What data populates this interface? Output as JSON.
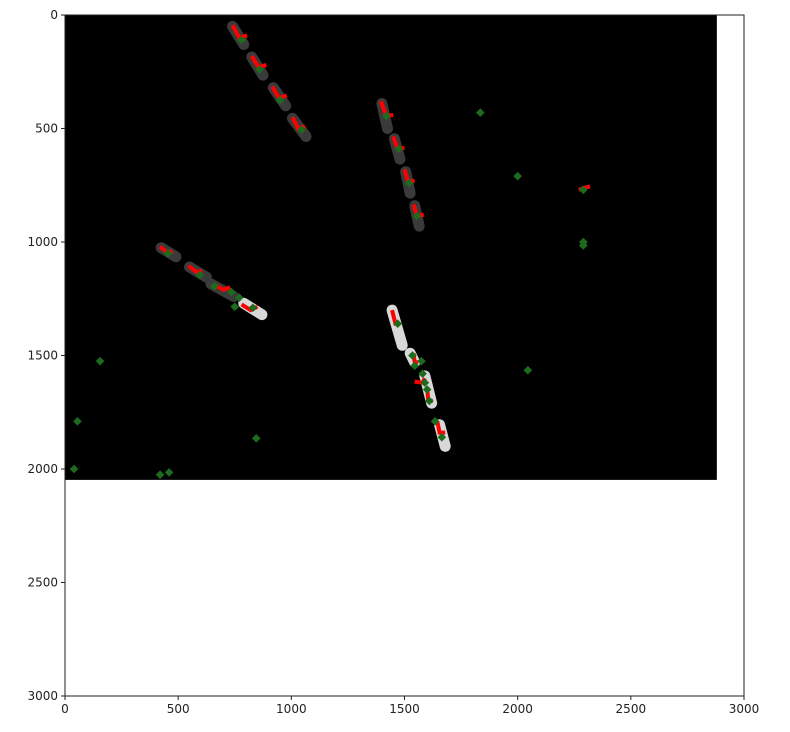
{
  "chart_data": {
    "type": "image",
    "xlim": [
      0,
      3000
    ],
    "ylim": [
      3000,
      0
    ],
    "x_ticks": [
      0,
      500,
      1000,
      1500,
      2000,
      2500,
      3000
    ],
    "y_ticks": [
      0,
      500,
      1000,
      1500,
      2000,
      2500,
      3000
    ],
    "x_tick_labels": [
      "0",
      "500",
      "1000",
      "1500",
      "2000",
      "2500",
      "3000"
    ],
    "y_tick_labels": [
      "0",
      "500",
      "1000",
      "1500",
      "2000",
      "2500",
      "3000"
    ],
    "image_extent": {
      "x": [
        0,
        2880
      ],
      "y": [
        0,
        2048
      ]
    },
    "colors": {
      "background": "#000000",
      "prediction": "#ff0000",
      "ground_truth": "#1e6b1e",
      "object_dark": "#3a3a3a",
      "object_light": "#d8d8d8"
    },
    "objects": [
      {
        "x1": 740,
        "y1": 50,
        "x2": 790,
        "y2": 130,
        "tone": "dark"
      },
      {
        "x1": 825,
        "y1": 185,
        "x2": 875,
        "y2": 265,
        "tone": "dark"
      },
      {
        "x1": 920,
        "y1": 320,
        "x2": 975,
        "y2": 400,
        "tone": "dark"
      },
      {
        "x1": 1005,
        "y1": 455,
        "x2": 1065,
        "y2": 535,
        "tone": "dark"
      },
      {
        "x1": 1400,
        "y1": 390,
        "x2": 1425,
        "y2": 500,
        "tone": "dark"
      },
      {
        "x1": 1455,
        "y1": 545,
        "x2": 1480,
        "y2": 635,
        "tone": "dark"
      },
      {
        "x1": 1505,
        "y1": 690,
        "x2": 1525,
        "y2": 785,
        "tone": "dark"
      },
      {
        "x1": 1545,
        "y1": 840,
        "x2": 1565,
        "y2": 930,
        "tone": "dark"
      },
      {
        "x1": 425,
        "y1": 1025,
        "x2": 490,
        "y2": 1065,
        "tone": "dark"
      },
      {
        "x1": 550,
        "y1": 1110,
        "x2": 625,
        "y2": 1155,
        "tone": "dark"
      },
      {
        "x1": 645,
        "y1": 1185,
        "x2": 745,
        "y2": 1240,
        "tone": "dark"
      },
      {
        "x1": 790,
        "y1": 1270,
        "x2": 870,
        "y2": 1320,
        "tone": "light"
      },
      {
        "x1": 1445,
        "y1": 1300,
        "x2": 1490,
        "y2": 1455,
        "tone": "light"
      },
      {
        "x1": 1590,
        "y1": 1590,
        "x2": 1620,
        "y2": 1710,
        "tone": "light"
      },
      {
        "x1": 1655,
        "y1": 1805,
        "x2": 1680,
        "y2": 1900,
        "tone": "light"
      },
      {
        "x1": 1525,
        "y1": 1490,
        "x2": 1545,
        "y2": 1530,
        "tone": "light"
      }
    ],
    "predictions": [
      {
        "x1": 740,
        "y1": 45,
        "x2": 770,
        "y2": 100,
        "x3": 805,
        "y3": 90
      },
      {
        "x1": 825,
        "y1": 180,
        "x2": 855,
        "y2": 230,
        "x3": 890,
        "y3": 220
      },
      {
        "x1": 915,
        "y1": 315,
        "x2": 945,
        "y2": 365,
        "x3": 980,
        "y3": 355
      },
      {
        "x1": 1005,
        "y1": 450,
        "x2": 1030,
        "y2": 500,
        "x3": 1060,
        "y3": 490
      },
      {
        "x1": 1395,
        "y1": 380,
        "x2": 1420,
        "y2": 445,
        "x3": 1450,
        "y3": 440
      },
      {
        "x1": 1450,
        "y1": 535,
        "x2": 1470,
        "y2": 590,
        "x3": 1500,
        "y3": 585
      },
      {
        "x1": 1500,
        "y1": 680,
        "x2": 1515,
        "y2": 735,
        "x3": 1545,
        "y3": 730
      },
      {
        "x1": 1540,
        "y1": 835,
        "x2": 1555,
        "y2": 885,
        "x3": 1585,
        "y3": 880
      },
      {
        "x1": 420,
        "y1": 1020,
        "x2": 455,
        "y2": 1050,
        "x3": 475,
        "y3": 1040
      },
      {
        "x1": 545,
        "y1": 1105,
        "x2": 585,
        "y2": 1135,
        "x3": 605,
        "y3": 1125
      },
      {
        "x1": 660,
        "y1": 1190,
        "x2": 700,
        "y2": 1210,
        "x3": 730,
        "y3": 1200
      },
      {
        "x1": 780,
        "y1": 1275,
        "x2": 820,
        "y2": 1300,
        "x3": 850,
        "y3": 1285
      },
      {
        "x1": 1445,
        "y1": 1300,
        "x2": 1460,
        "y2": 1360,
        "x3": 1480,
        "y3": 1360
      },
      {
        "x1": 1540,
        "y1": 1490,
        "x2": 1545,
        "y2": 1530,
        "x3": 1560,
        "y3": 1530
      },
      {
        "x1": 1545,
        "y1": 1615,
        "x2": 1580,
        "y2": 1620,
        "x3": 1590,
        "y3": 1600
      },
      {
        "x1": 1600,
        "y1": 1640,
        "x2": 1605,
        "y2": 1700,
        "x3": 1625,
        "y3": 1700
      },
      {
        "x1": 1645,
        "y1": 1790,
        "x2": 1655,
        "y2": 1840,
        "x3": 1680,
        "y3": 1840
      },
      {
        "x1": 2270,
        "y1": 770,
        "x2": 2300,
        "y2": 760,
        "x3": 2320,
        "y3": 755
      }
    ],
    "ground_truth": [
      [
        780,
        110
      ],
      [
        860,
        240
      ],
      [
        950,
        375
      ],
      [
        1045,
        505
      ],
      [
        1420,
        445
      ],
      [
        1475,
        590
      ],
      [
        1520,
        740
      ],
      [
        1555,
        885
      ],
      [
        455,
        1050
      ],
      [
        595,
        1145
      ],
      [
        660,
        1195
      ],
      [
        735,
        1220
      ],
      [
        770,
        1245
      ],
      [
        830,
        1290
      ],
      [
        750,
        1285
      ],
      [
        1470,
        1360
      ],
      [
        1535,
        1500
      ],
      [
        1545,
        1545
      ],
      [
        1575,
        1525
      ],
      [
        1580,
        1580
      ],
      [
        1590,
        1620
      ],
      [
        1600,
        1650
      ],
      [
        1610,
        1700
      ],
      [
        1635,
        1790
      ],
      [
        1665,
        1860
      ],
      [
        1835,
        430
      ],
      [
        2000,
        710
      ],
      [
        2290,
        770
      ],
      [
        2290,
        1000
      ],
      [
        2290,
        1015
      ],
      [
        2045,
        1565
      ],
      [
        155,
        1525
      ],
      [
        55,
        1790
      ],
      [
        845,
        1865
      ],
      [
        40,
        2000
      ],
      [
        420,
        2025
      ],
      [
        460,
        2015
      ]
    ]
  }
}
